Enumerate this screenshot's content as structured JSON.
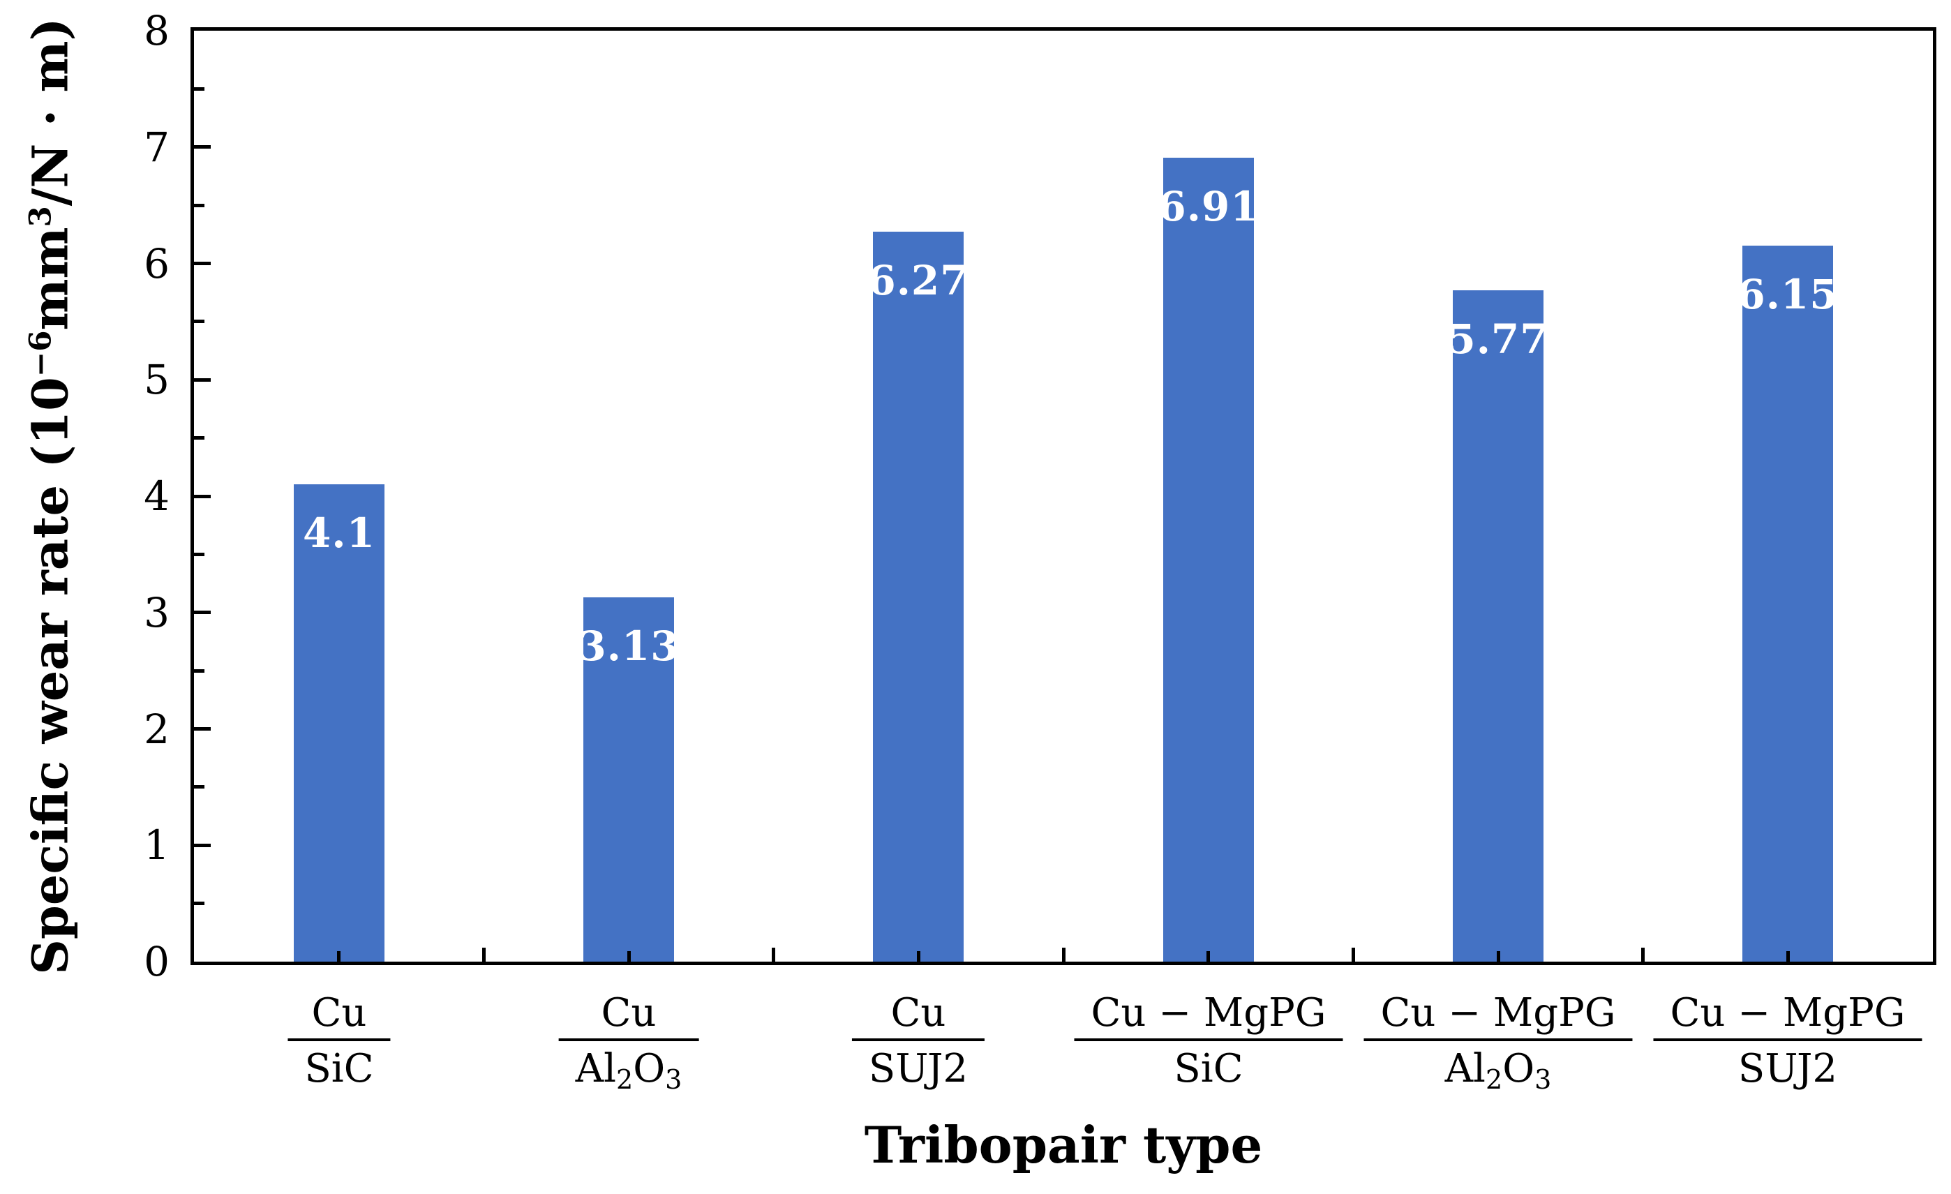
{
  "chart_data": {
    "type": "bar",
    "title": "",
    "xlabel": "Tribopair type",
    "ylabel_plain": "Specific wear rate (10−6mm3/N · m)",
    "ylabel_segments": [
      {
        "text": "Specific wear rate (10"
      },
      {
        "text": "−6",
        "sup": true
      },
      {
        "text": "mm"
      },
      {
        "text": "3",
        "sup": true
      },
      {
        "text": "/N · m)"
      }
    ],
    "ylim": [
      0,
      8
    ],
    "ytick_labels": [
      "0",
      "1",
      "2",
      "3",
      "4",
      "5",
      "6",
      "7",
      "8"
    ],
    "ytick_step": 1,
    "ytick_minor_step": 0.5,
    "grid": false,
    "legend": null,
    "categories": [
      {
        "plain": "Cu/SiC",
        "numerator": "Cu",
        "denominator": [
          {
            "text": "SiC"
          }
        ]
      },
      {
        "plain": "Cu/Al2O3",
        "numerator": "Cu",
        "denominator": [
          {
            "text": "Al"
          },
          {
            "text": "2",
            "sub": true
          },
          {
            "text": "O"
          },
          {
            "text": "3",
            "sub": true
          }
        ]
      },
      {
        "plain": "Cu/SUJ2",
        "numerator": "Cu",
        "denominator": [
          {
            "text": "SUJ2"
          }
        ]
      },
      {
        "plain": "Cu−MgPG/SiC",
        "numerator": "Cu − MgPG",
        "denominator": [
          {
            "text": "SiC"
          }
        ]
      },
      {
        "plain": "Cu−MgPG/Al2O3",
        "numerator": "Cu − MgPG",
        "denominator": [
          {
            "text": "Al"
          },
          {
            "text": "2",
            "sub": true
          },
          {
            "text": "O"
          },
          {
            "text": "3",
            "sub": true
          }
        ]
      },
      {
        "plain": "Cu−MgPG/SUJ2",
        "numerator": "Cu − MgPG",
        "denominator": [
          {
            "text": "SUJ2"
          }
        ]
      }
    ],
    "values": [
      4.1,
      3.13,
      6.27,
      6.91,
      5.77,
      6.15
    ],
    "value_labels": [
      "4.1",
      "3.13",
      "6.27",
      "6.91",
      "5.77",
      "6.15"
    ],
    "colors": {
      "bar": "#4472C4",
      "axis": "#000000",
      "value_label": "#FFFFFF",
      "background": "#FFFFFF"
    }
  }
}
